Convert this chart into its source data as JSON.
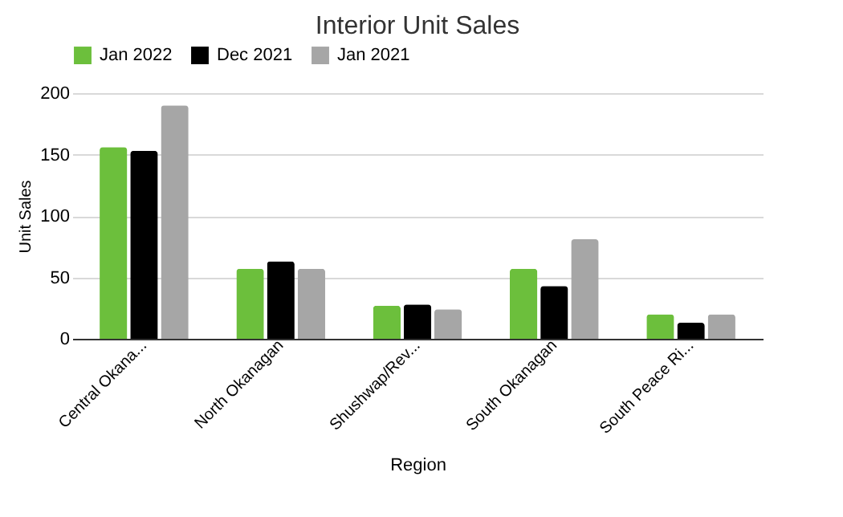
{
  "chart_data": {
    "type": "bar",
    "title": "Interior Unit Sales",
    "xlabel": "Region",
    "ylabel": "Unit Sales",
    "categories": [
      "Central Okana...",
      "North Okanagan",
      "Shushwap/Rev...",
      "South Okanagan",
      "South Peace Ri..."
    ],
    "series": [
      {
        "name": "Jan 2022",
        "color": "#6cbf3c",
        "values": [
          156,
          57,
          27,
          57,
          20
        ]
      },
      {
        "name": "Dec 2021",
        "color": "#000000",
        "values": [
          153,
          63,
          28,
          43,
          13
        ]
      },
      {
        "name": "Jan 2021",
        "color": "#a6a6a6",
        "values": [
          190,
          57,
          24,
          81,
          20
        ]
      }
    ],
    "ylim": [
      0,
      200
    ],
    "yticks": [
      0,
      50,
      100,
      150,
      200
    ],
    "grid": "y",
    "legend": "top"
  }
}
